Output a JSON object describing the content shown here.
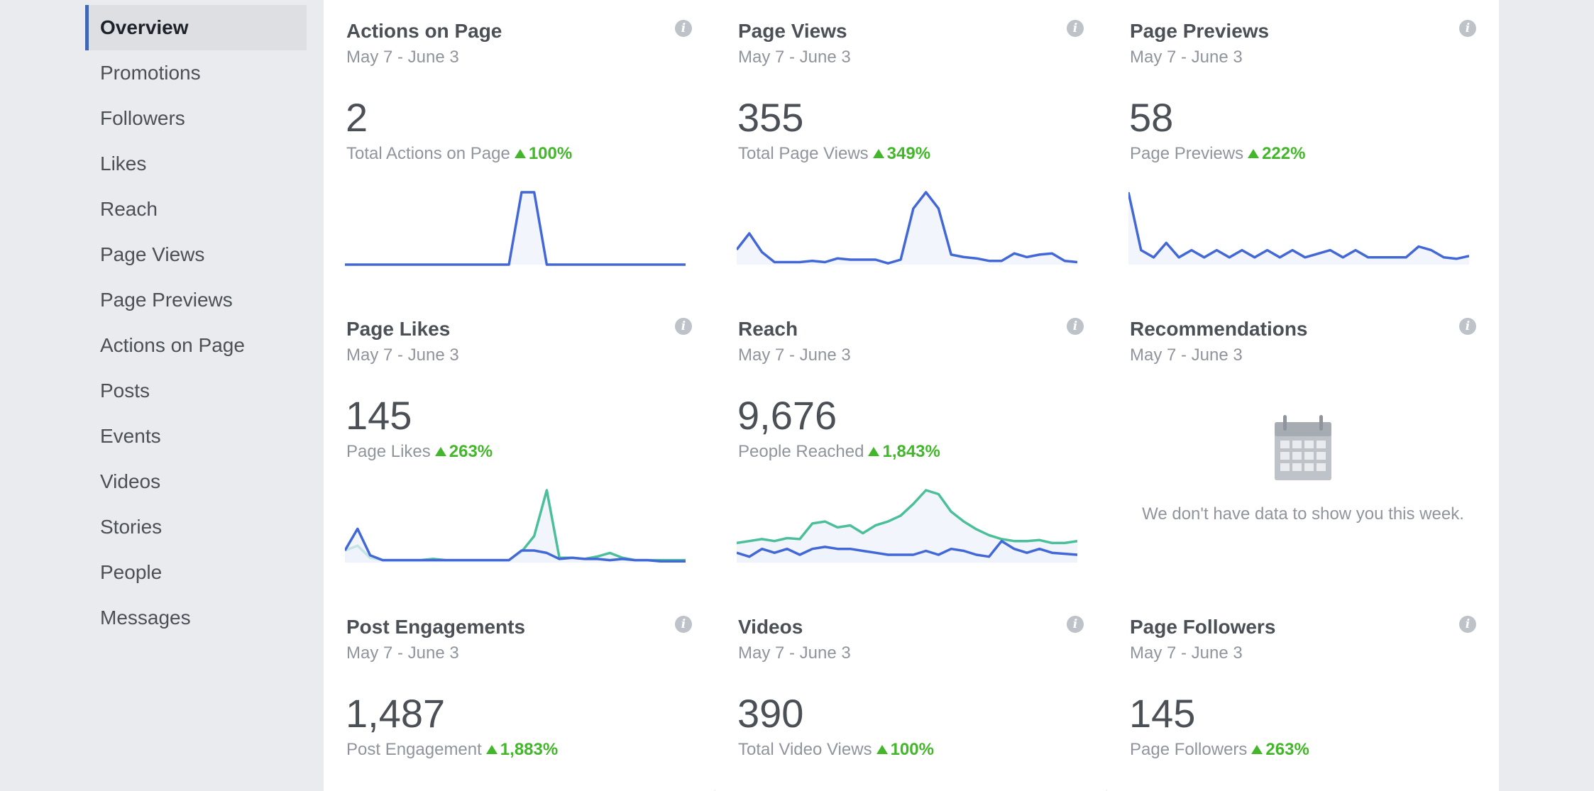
{
  "sidebar": {
    "items": [
      {
        "label": "Overview",
        "active": true
      },
      {
        "label": "Promotions"
      },
      {
        "label": "Followers"
      },
      {
        "label": "Likes"
      },
      {
        "label": "Reach"
      },
      {
        "label": "Page Views"
      },
      {
        "label": "Page Previews"
      },
      {
        "label": "Actions on Page"
      },
      {
        "label": "Posts"
      },
      {
        "label": "Events"
      },
      {
        "label": "Videos"
      },
      {
        "label": "Stories"
      },
      {
        "label": "People"
      },
      {
        "label": "Messages"
      }
    ]
  },
  "info_glyph": "i",
  "colors": {
    "accent_blue": "#4267b2",
    "line_blue": "#4267d6",
    "line_green": "#4bbf9a",
    "positive_green": "#42b72a",
    "area_fill": "#edf1fb"
  },
  "cards": [
    {
      "title": "Actions on Page",
      "date": "May 7 - June 3",
      "value": "2",
      "caption": "Total Actions on Page",
      "delta": "100%",
      "series": [
        [
          0,
          0,
          0,
          0,
          0,
          0,
          0,
          0,
          0,
          0,
          0,
          0,
          0,
          0,
          1,
          1,
          0,
          0,
          0,
          0,
          0,
          0,
          0,
          0,
          0,
          0,
          0,
          0
        ]
      ]
    },
    {
      "title": "Page Views",
      "date": "May 7 - June 3",
      "value": "355",
      "caption": "Total Page Views",
      "delta": "349%",
      "series": [
        [
          12,
          25,
          10,
          2,
          2,
          2,
          3,
          2,
          5,
          4,
          4,
          4,
          1,
          4,
          45,
          58,
          45,
          8,
          6,
          5,
          3,
          3,
          9,
          6,
          8,
          9,
          3,
          2
        ]
      ]
    },
    {
      "title": "Page Previews",
      "date": "May 7 - June 3",
      "value": "58",
      "caption": "Page Previews",
      "delta": "222%",
      "series": [
        [
          10,
          2,
          1,
          3,
          1,
          2,
          1,
          2,
          1,
          2,
          1,
          2,
          1,
          2,
          1,
          1.5,
          2,
          1,
          2,
          1,
          1,
          1,
          1,
          2.5,
          2,
          1,
          0.8,
          1.2
        ]
      ]
    },
    {
      "title": "Page Likes",
      "date": "May 7 - June 3",
      "value": "145",
      "caption": "Page Likes",
      "delta": "263%",
      "series": [
        [
          10,
          14,
          4,
          2,
          2,
          2,
          2,
          3,
          2,
          2,
          2,
          2,
          2,
          2,
          9,
          22,
          60,
          4,
          4,
          3,
          5,
          8,
          4,
          2,
          2,
          2,
          2,
          2
        ],
        [
          10,
          28,
          6,
          2,
          2,
          2,
          2,
          2,
          2,
          2,
          2,
          2,
          2,
          2,
          10,
          10,
          8,
          3,
          4,
          3,
          3,
          2,
          3,
          2,
          2,
          1,
          1,
          1
        ]
      ]
    },
    {
      "title": "Reach",
      "date": "May 7 - June 3",
      "value": "9,676",
      "caption": "People Reached",
      "delta": "1,843%",
      "series": [
        [
          20,
          22,
          24,
          22,
          25,
          24,
          40,
          42,
          36,
          38,
          30,
          38,
          42,
          48,
          60,
          74,
          70,
          52,
          42,
          34,
          28,
          24,
          22,
          22,
          23,
          20,
          20,
          22
        ],
        [
          10,
          6,
          14,
          10,
          14,
          8,
          14,
          16,
          14,
          14,
          12,
          10,
          8,
          8,
          8,
          12,
          8,
          14,
          12,
          8,
          6,
          22,
          14,
          10,
          14,
          10,
          9,
          8
        ]
      ]
    },
    {
      "title": "Recommendations",
      "date": "May 7 - June 3",
      "empty": true,
      "empty_text": "We don't have data to show you this week."
    },
    {
      "title": "Post Engagements",
      "date": "May 7 - June 3",
      "value": "1,487",
      "caption": "Post Engagement",
      "delta": "1,883%"
    },
    {
      "title": "Videos",
      "date": "May 7 - June 3",
      "value": "390",
      "caption": "Total Video Views",
      "delta": "100%"
    },
    {
      "title": "Page Followers",
      "date": "May 7 - June 3",
      "value": "145",
      "caption": "Page Followers",
      "delta": "263%"
    }
  ]
}
